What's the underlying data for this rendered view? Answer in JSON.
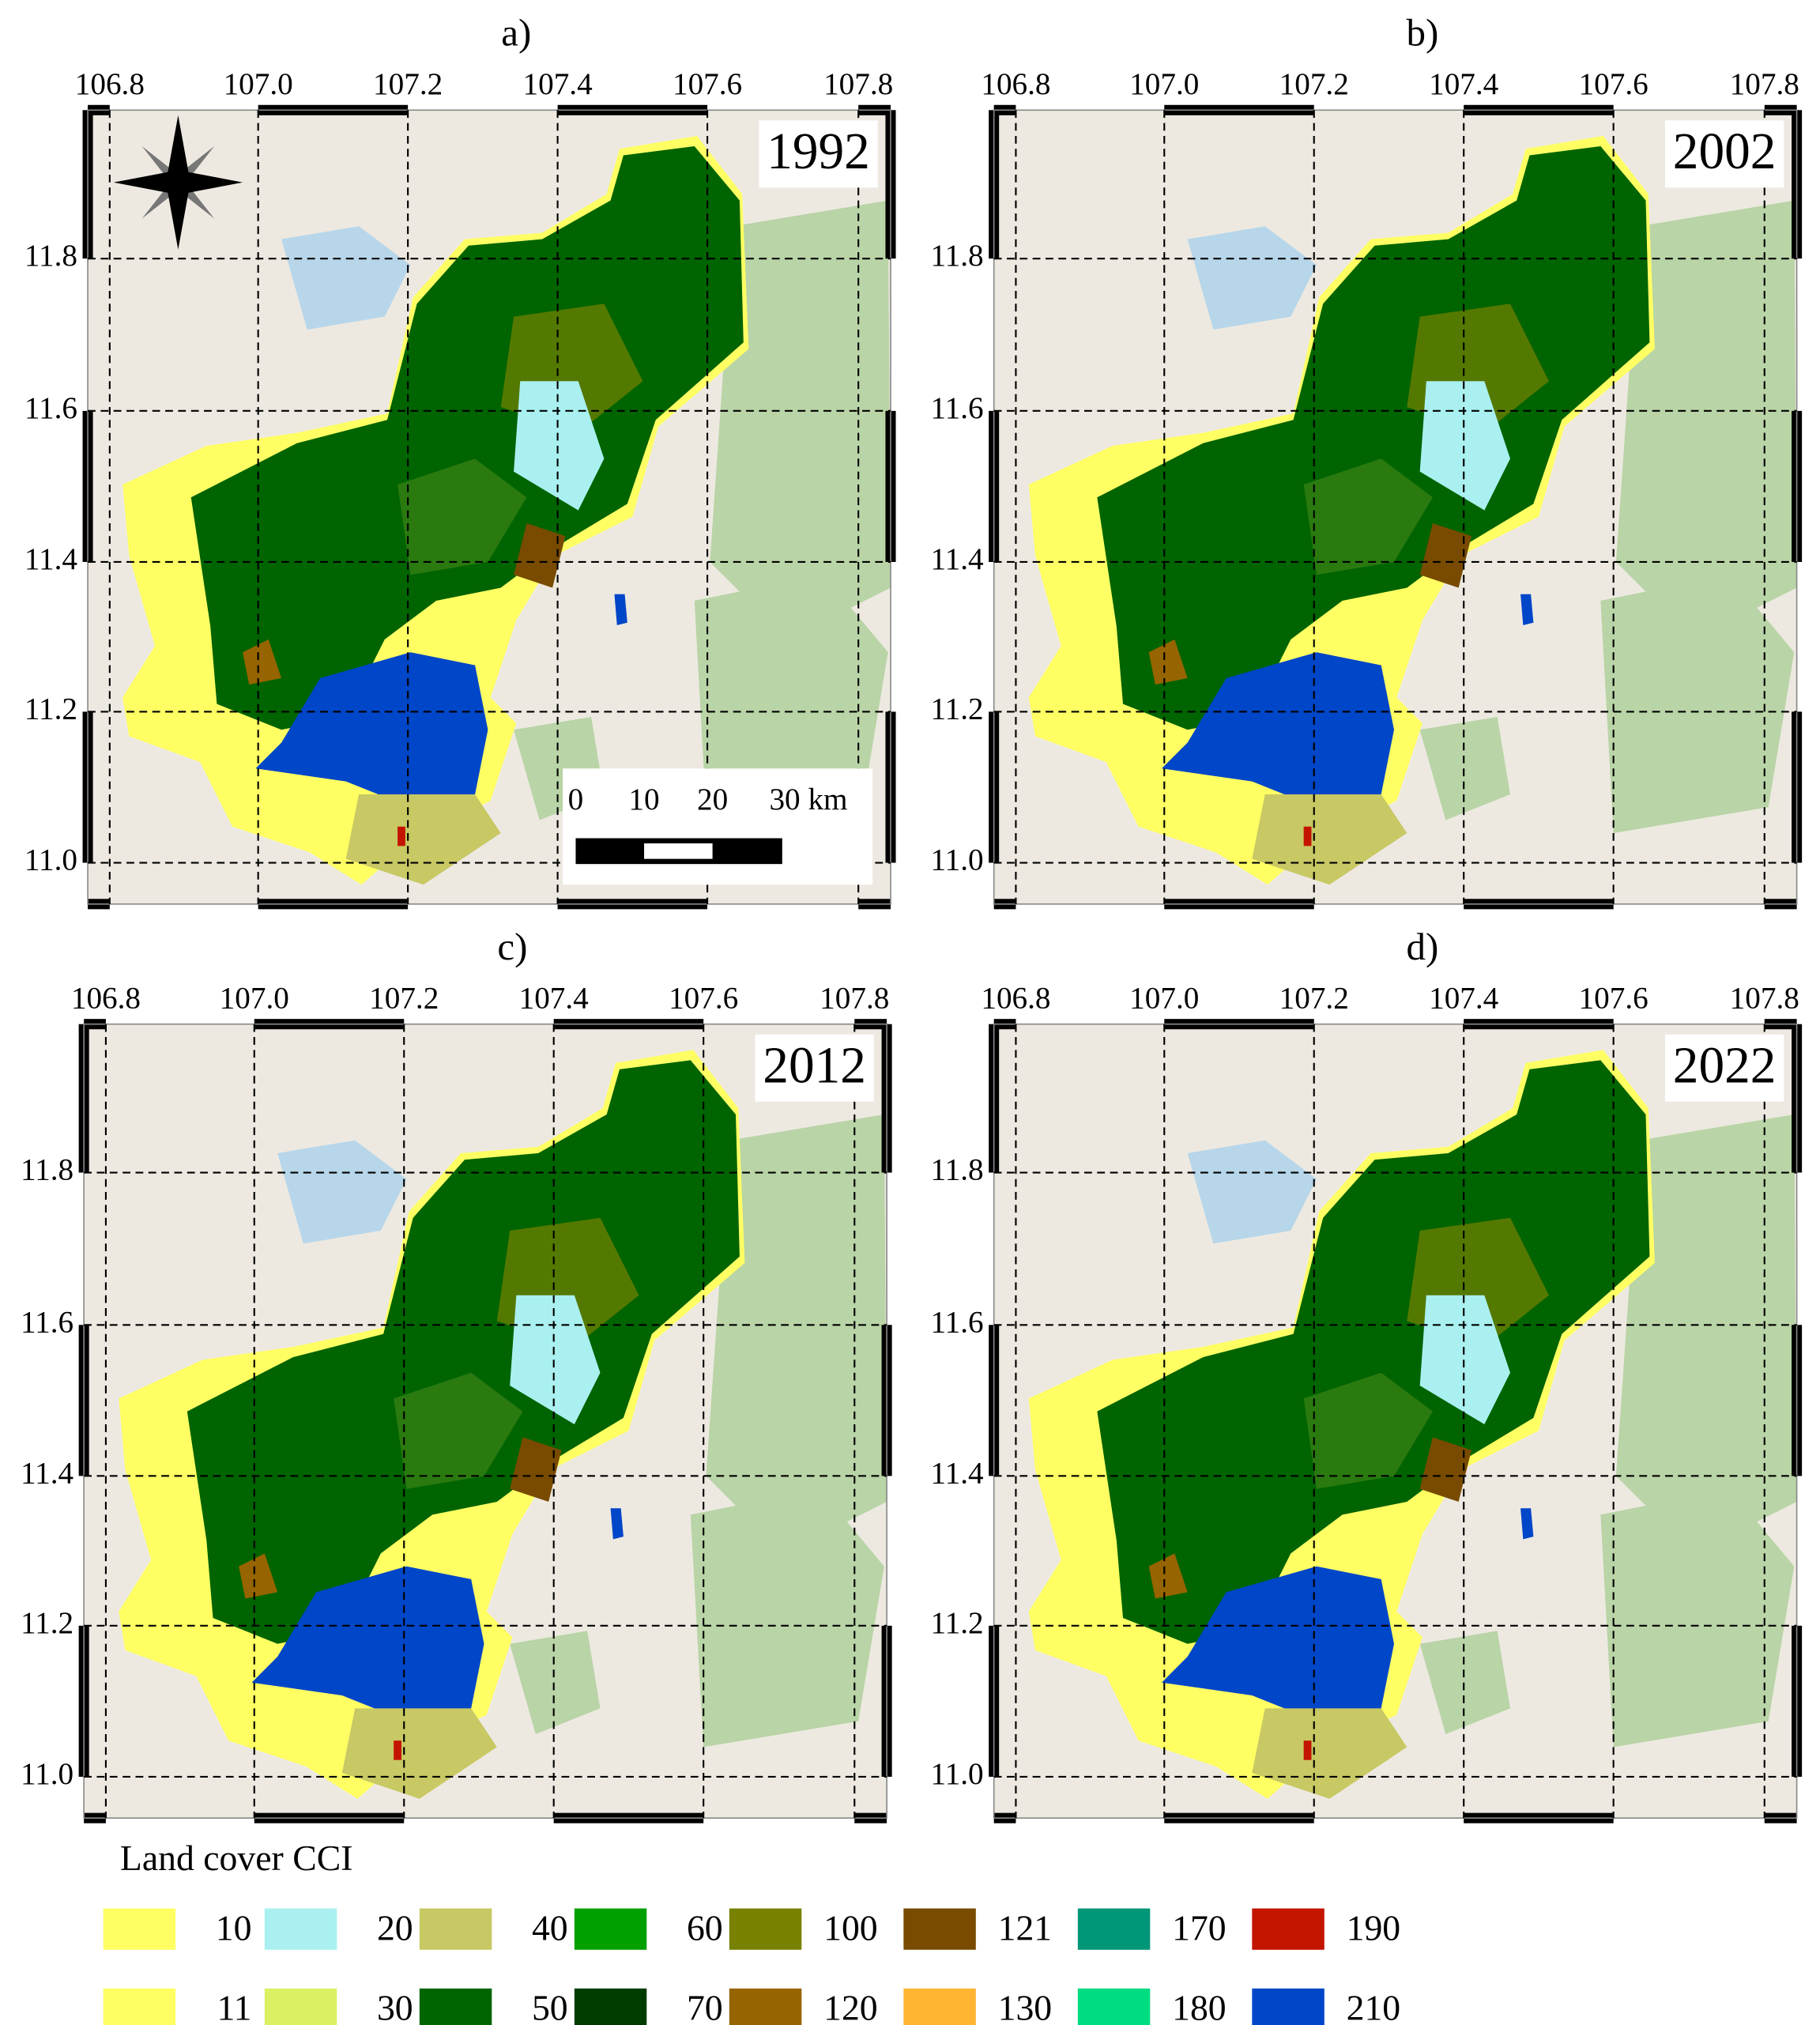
{
  "panels": [
    {
      "label": "a)",
      "year": "1992"
    },
    {
      "label": "b)",
      "year": "2002"
    },
    {
      "label": "c)",
      "year": "2012"
    },
    {
      "label": "d)",
      "year": "2022"
    }
  ],
  "longitude_ticks": [
    "106.8",
    "107.0",
    "107.2",
    "107.4",
    "107.6",
    "107.8"
  ],
  "latitude_ticks": [
    "11.8",
    "11.6",
    "11.4",
    "11.2",
    "11.0"
  ],
  "scale_bar": {
    "labels": [
      "0",
      "10",
      "20",
      "30 km"
    ]
  },
  "legend": {
    "title": "Land cover CCI",
    "items": [
      {
        "code": "10",
        "color": "#ffff64"
      },
      {
        "code": "11",
        "color": "#ffff64"
      },
      {
        "code": "20",
        "color": "#aaf0f0"
      },
      {
        "code": "30",
        "color": "#dcf064"
      },
      {
        "code": "40",
        "color": "#c8c864"
      },
      {
        "code": "50",
        "color": "#006400"
      },
      {
        "code": "60",
        "color": "#00a000"
      },
      {
        "code": "70",
        "color": "#003c00"
      },
      {
        "code": "100",
        "color": "#788200"
      },
      {
        "code": "120",
        "color": "#966400"
      },
      {
        "code": "121",
        "color": "#784b00"
      },
      {
        "code": "130",
        "color": "#ffb432"
      },
      {
        "code": "170",
        "color": "#009678"
      },
      {
        "code": "180",
        "color": "#00dc82"
      },
      {
        "code": "190",
        "color": "#c31400"
      },
      {
        "code": "210",
        "color": "#0046c8"
      }
    ]
  }
}
